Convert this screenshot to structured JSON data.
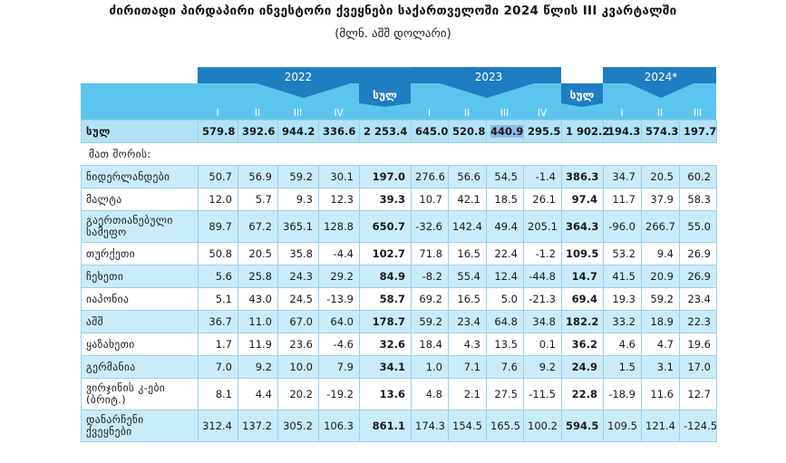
{
  "title": "ძირითადი პირდაპირი ინვესტორი ქვეყნები საქართველოში 2024 წლის III კვარტალში",
  "subtitle": "(მლნ. აშშ დოლარი)",
  "header": {
    "years": [
      "2022",
      "2023",
      "2024*"
    ],
    "total_label": "სულ",
    "quarters_2022": [
      "I",
      "II",
      "III",
      "IV"
    ],
    "quarters_2023": [
      "I",
      "II",
      "III",
      "IV"
    ],
    "quarters_2024": [
      "I",
      "II",
      "III"
    ]
  },
  "total_row": {
    "name": "სულ",
    "values": [
      "579.8",
      "392.6",
      "944.2",
      "336.6",
      "2 253.4",
      "645.0",
      "520.8",
      "440.9",
      "295.5",
      "1 902.2",
      "194.3",
      "574.3",
      "197.7"
    ]
  },
  "subheader": "მათ შორის:",
  "rows": [
    {
      "name": "ნიდერლანდები",
      "values": [
        "50.7",
        "56.9",
        "59.2",
        "30.1",
        "197.0",
        "276.6",
        "56.6",
        "54.5",
        "-1.4",
        "386.3",
        "34.7",
        "20.5",
        "60.2"
      ]
    },
    {
      "name": "მალტა",
      "values": [
        "12.0",
        "5.7",
        "9.3",
        "12.3",
        "39.3",
        "10.7",
        "42.1",
        "18.5",
        "26.1",
        "97.4",
        "11.7",
        "37.9",
        "58.3"
      ]
    },
    {
      "name": "გაერთიანებული სამეფო",
      "values": [
        "89.7",
        "67.2",
        "365.1",
        "128.8",
        "650.7",
        "-32.6",
        "142.4",
        "49.4",
        "205.1",
        "364.3",
        "-96.0",
        "266.7",
        "55.0"
      ]
    },
    {
      "name": "თურქეთი",
      "values": [
        "50.8",
        "20.5",
        "35.8",
        "-4.4",
        "102.7",
        "71.8",
        "16.5",
        "22.4",
        "-1.2",
        "109.5",
        "53.2",
        "9.4",
        "26.9"
      ]
    },
    {
      "name": "ჩეხეთი",
      "values": [
        "5.6",
        "25.8",
        "24.3",
        "29.2",
        "84.9",
        "-8.2",
        "55.4",
        "12.4",
        "-44.8",
        "14.7",
        "41.5",
        "20.9",
        "26.9"
      ]
    },
    {
      "name": "იაპონია",
      "values": [
        "5.1",
        "43.0",
        "24.5",
        "-13.9",
        "58.7",
        "69.2",
        "16.5",
        "5.0",
        "-21.3",
        "69.4",
        "19.3",
        "59.2",
        "23.4"
      ]
    },
    {
      "name": "აშშ",
      "values": [
        "36.7",
        "11.0",
        "67.0",
        "64.0",
        "178.7",
        "59.2",
        "23.4",
        "64.8",
        "34.8",
        "182.2",
        "33.2",
        "18.9",
        "22.3"
      ]
    },
    {
      "name": "ყაზახეთი",
      "values": [
        "1.7",
        "11.9",
        "23.6",
        "-4.6",
        "32.6",
        "18.4",
        "4.3",
        "13.5",
        "0.1",
        "36.2",
        "4.6",
        "4.7",
        "19.6"
      ]
    },
    {
      "name": "გერმანია",
      "values": [
        "7.0",
        "9.2",
        "10.0",
        "7.9",
        "34.1",
        "1.0",
        "7.1",
        "7.6",
        "9.2",
        "24.9",
        "1.5",
        "3.1",
        "17.0"
      ]
    },
    {
      "name": "ვირჯინის კ-ები (ბრიტ.)",
      "values": [
        "8.1",
        "4.4",
        "20.2",
        "-19.2",
        "13.6",
        "4.8",
        "2.1",
        "27.5",
        "-11.5",
        "22.8",
        "-18.9",
        "11.6",
        "12.7"
      ]
    },
    {
      "name": "დანარჩენი ქვეყნები",
      "values": [
        "312.4",
        "137.2",
        "305.2",
        "106.3",
        "861.1",
        "174.3",
        "154.5",
        "165.5",
        "100.2",
        "594.5",
        "109.5",
        "121.4",
        "-124.5"
      ]
    }
  ]
}
